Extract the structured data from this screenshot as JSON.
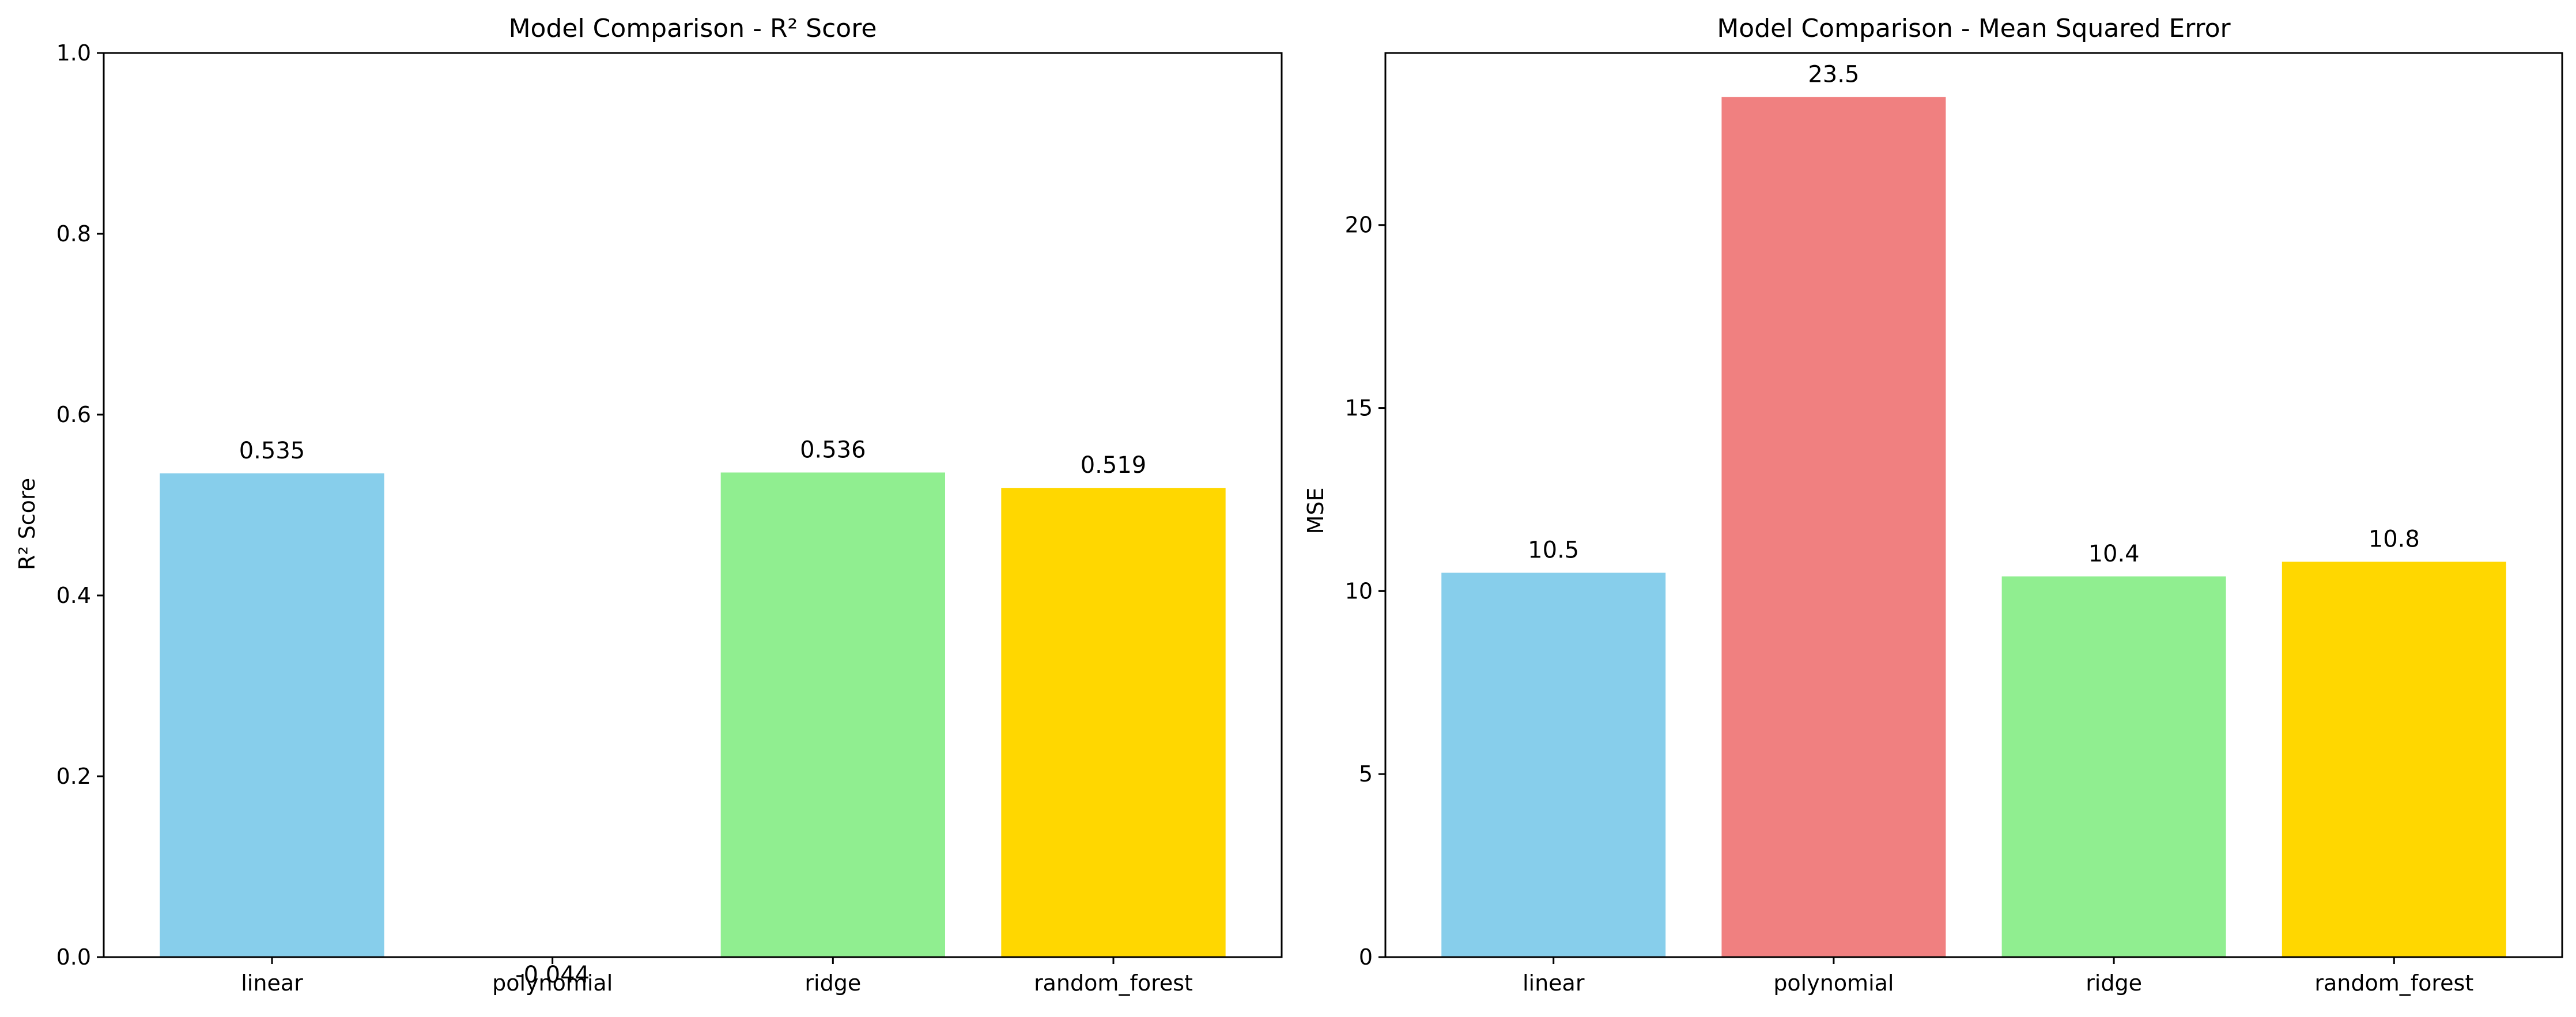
{
  "chart_data": [
    {
      "type": "bar",
      "title": "Model Comparison - R² Score",
      "xlabel": "",
      "ylabel": "R² Score",
      "ylim": [
        0,
        1.0
      ],
      "yticks": [
        0.0,
        0.2,
        0.4,
        0.6,
        0.8,
        1.0
      ],
      "ytick_labels": [
        "0.0",
        "0.2",
        "0.4",
        "0.6",
        "0.8",
        "1.0"
      ],
      "categories": [
        "linear",
        "polynomial",
        "ridge",
        "random_forest"
      ],
      "values": [
        0.535,
        -0.044,
        0.536,
        0.519
      ],
      "value_labels": [
        "0.535",
        "-0.044",
        "0.536",
        "0.519"
      ],
      "colors": [
        "#87CEEB",
        "#F08080",
        "#90EE90",
        "#FFD700"
      ],
      "grid": false,
      "legend": false
    },
    {
      "type": "bar",
      "title": "Model Comparison - Mean Squared Error",
      "xlabel": "",
      "ylabel": "MSE",
      "ylim": [
        0,
        24.7
      ],
      "yticks": [
        0,
        5,
        10,
        15,
        20
      ],
      "ytick_labels": [
        "0",
        "5",
        "10",
        "15",
        "20"
      ],
      "categories": [
        "linear",
        "polynomial",
        "ridge",
        "random_forest"
      ],
      "values": [
        10.5,
        23.5,
        10.4,
        10.8
      ],
      "value_labels": [
        "10.5",
        "23.5",
        "10.4",
        "10.8"
      ],
      "colors": [
        "#87CEEB",
        "#F08080",
        "#90EE90",
        "#FFD700"
      ],
      "grid": false,
      "legend": false
    }
  ]
}
